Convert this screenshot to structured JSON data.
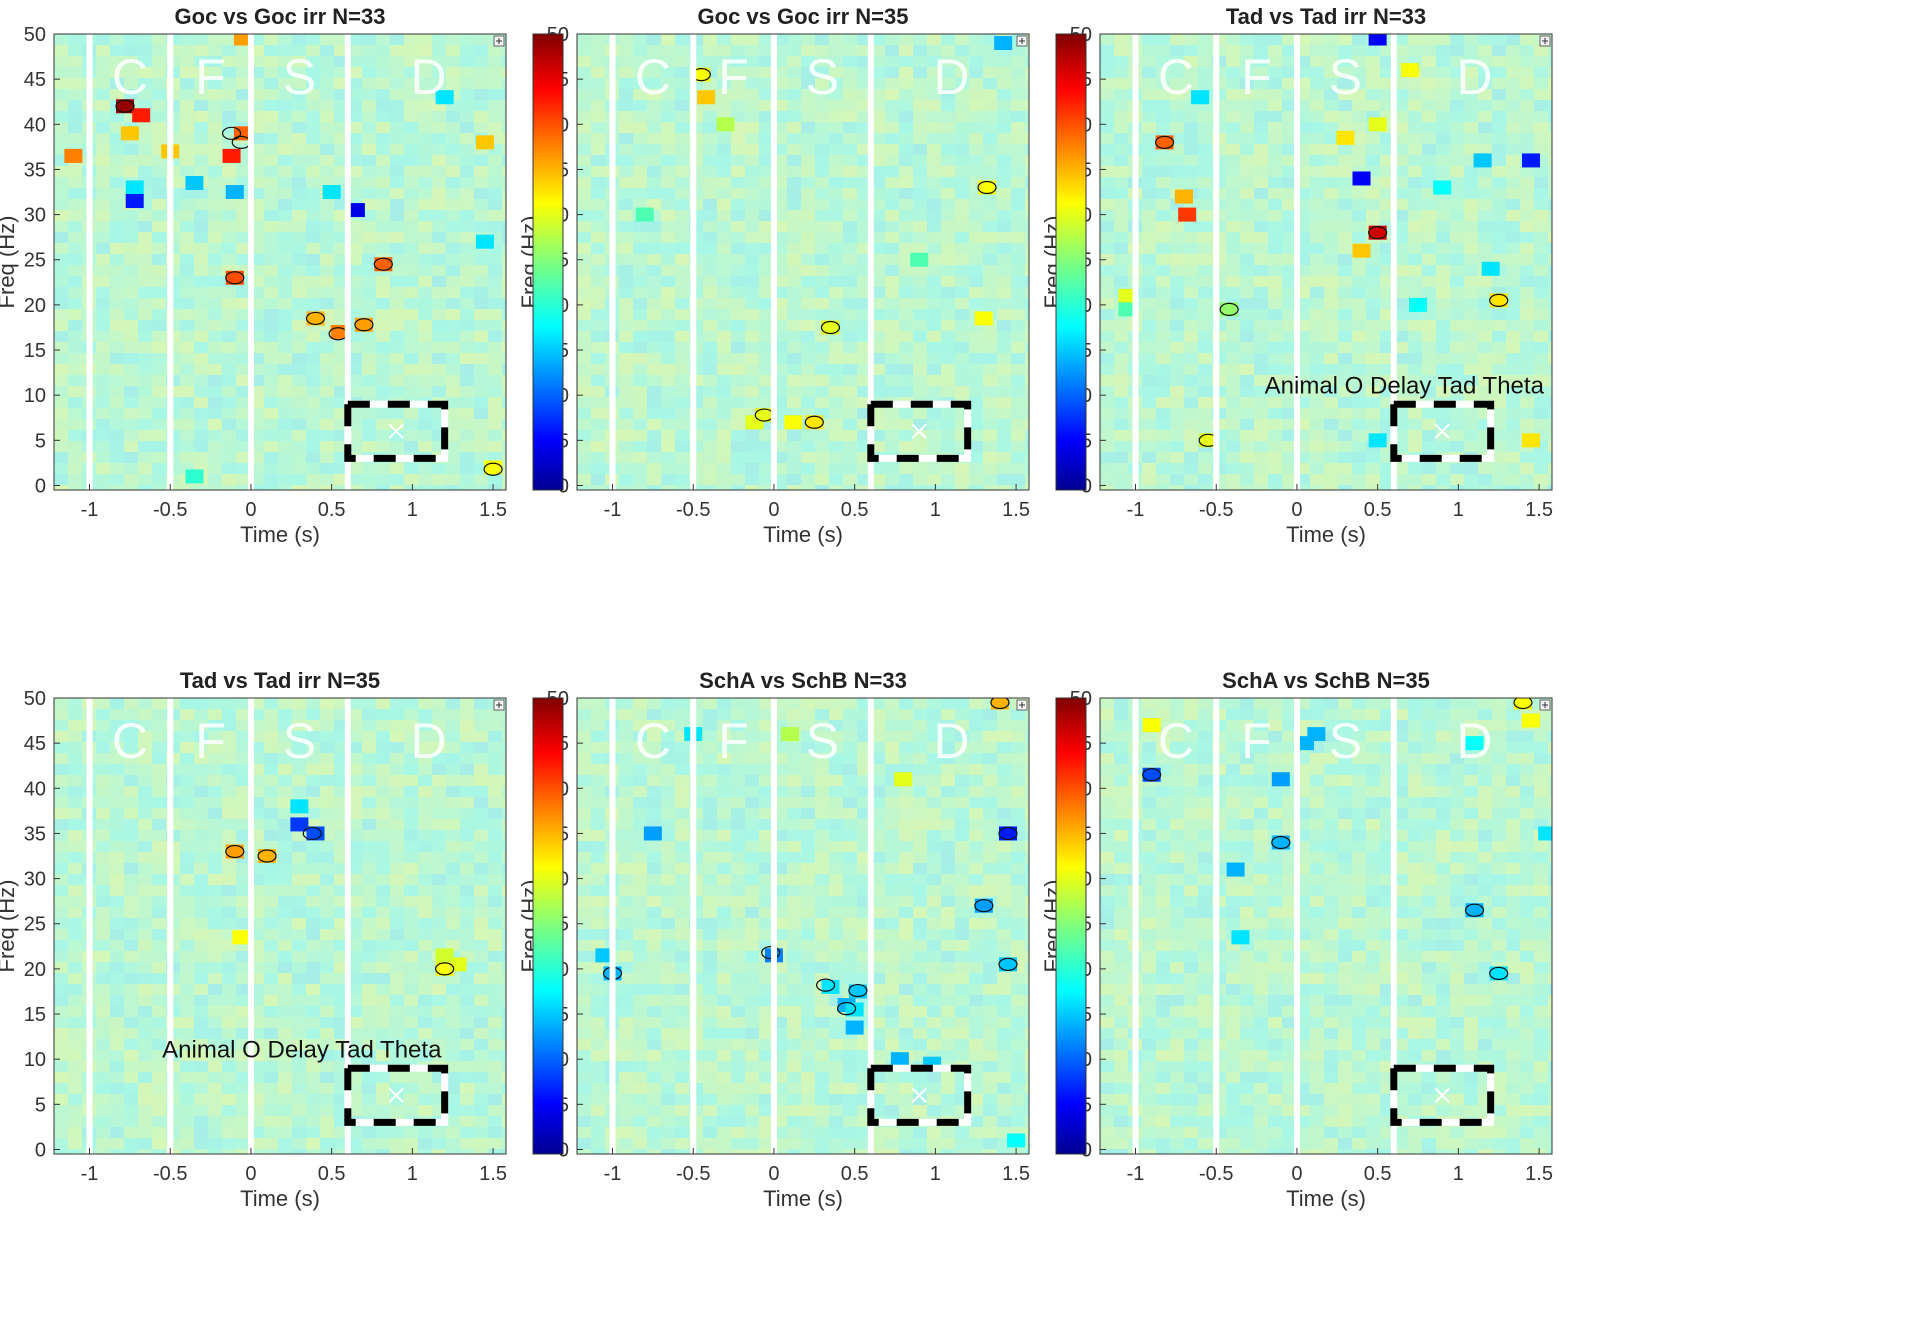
{
  "figure": {
    "colormap": "jet",
    "panel_background": "#c8edc8"
  },
  "chart_data": [
    {
      "type": "heatmap",
      "title": "Goc vs Goc irr N=33",
      "xlabel": "Time (s)",
      "ylabel": "Freq (Hz)",
      "xlim": [
        -1.22,
        1.58
      ],
      "ylim": [
        -0.5,
        50
      ],
      "xticks": [
        "-1",
        "-0.5",
        "0",
        "0.5",
        "1",
        "1.5"
      ],
      "yticks": [
        "0",
        "5",
        "10",
        "15",
        "20",
        "25",
        "30",
        "35",
        "40",
        "45",
        "50"
      ],
      "phase_dividers_s": [
        -1,
        -0.5,
        0,
        0.6
      ],
      "phase_labels": [
        {
          "text": "C",
          "time_s": -0.75
        },
        {
          "text": "F",
          "time_s": -0.25
        },
        {
          "text": "S",
          "time_s": 0.3
        },
        {
          "text": "D",
          "time_s": 1.1
        }
      ],
      "roi_box": {
        "t0": 0.6,
        "t1": 1.2,
        "f0": 3,
        "f1": 9,
        "marker": "x"
      },
      "annotation": "",
      "colorbar": false,
      "blobs": [
        {
          "time_s": -0.78,
          "freq_hz": 42,
          "level": 0.98
        },
        {
          "time_s": -0.68,
          "freq_hz": 41,
          "level": 0.85
        },
        {
          "time_s": -1.1,
          "freq_hz": 36.5,
          "level": 0.75
        },
        {
          "time_s": -0.75,
          "freq_hz": 39,
          "level": 0.68
        },
        {
          "time_s": -0.5,
          "freq_hz": 37,
          "level": 0.68
        },
        {
          "time_s": -0.72,
          "freq_hz": 33,
          "level": 0.35
        },
        {
          "time_s": -0.35,
          "freq_hz": 33.5,
          "level": 0.32
        },
        {
          "time_s": -0.1,
          "freq_hz": 32.5,
          "level": 0.3
        },
        {
          "time_s": -0.05,
          "freq_hz": 39,
          "level": 0.78
        },
        {
          "time_s": -0.12,
          "freq_hz": 36.5,
          "level": 0.85
        },
        {
          "time_s": -0.72,
          "freq_hz": 31.5,
          "level": 0.15
        },
        {
          "time_s": 0.5,
          "freq_hz": 32.5,
          "level": 0.35
        },
        {
          "time_s": 0.65,
          "freq_hz": 30.5,
          "level": 0.1
        },
        {
          "time_s": -0.1,
          "freq_hz": 23,
          "level": 0.8
        },
        {
          "time_s": 0.82,
          "freq_hz": 24.5,
          "level": 0.78
        },
        {
          "time_s": 0.4,
          "freq_hz": 18.5,
          "level": 0.7
        },
        {
          "time_s": 0.55,
          "freq_hz": 17,
          "level": 0.75
        },
        {
          "time_s": 0.7,
          "freq_hz": 17.8,
          "level": 0.72
        },
        {
          "time_s": 1.5,
          "freq_hz": 2,
          "level": 0.62
        },
        {
          "time_s": -0.35,
          "freq_hz": 1,
          "level": 0.42
        },
        {
          "time_s": 1.45,
          "freq_hz": 38,
          "level": 0.68
        },
        {
          "time_s": 1.2,
          "freq_hz": 43,
          "level": 0.35
        },
        {
          "time_s": -0.05,
          "freq_hz": 49.5,
          "level": 0.72
        },
        {
          "time_s": 1.45,
          "freq_hz": 27,
          "level": 0.35
        }
      ],
      "contours": [
        {
          "time_s": -0.78,
          "freq_hz": 42
        },
        {
          "time_s": -0.1,
          "freq_hz": 23
        },
        {
          "time_s": 0.4,
          "freq_hz": 18.5
        },
        {
          "time_s": 0.54,
          "freq_hz": 16.8
        },
        {
          "time_s": 0.7,
          "freq_hz": 17.8
        },
        {
          "time_s": 1.5,
          "freq_hz": 1.8
        },
        {
          "time_s": -0.12,
          "freq_hz": 39
        },
        {
          "time_s": -0.06,
          "freq_hz": 38
        },
        {
          "time_s": 0.82,
          "freq_hz": 24.5
        }
      ]
    },
    {
      "type": "heatmap",
      "title": "Goc vs Goc irr N=35",
      "xlabel": "Time (s)",
      "ylabel": "Freq (Hz)",
      "xlim": [
        -1.22,
        1.58
      ],
      "ylim": [
        -0.5,
        50
      ],
      "xticks": [
        "-1",
        "-0.5",
        "0",
        "0.5",
        "1",
        "1.5"
      ],
      "yticks": [
        "0",
        "5",
        "10",
        "15",
        "20",
        "25",
        "30",
        "35",
        "40",
        "45",
        "50"
      ],
      "phase_dividers_s": [
        -1,
        -0.5,
        0,
        0.6
      ],
      "phase_labels": [
        {
          "text": "C",
          "time_s": -0.75
        },
        {
          "text": "F",
          "time_s": -0.25
        },
        {
          "text": "S",
          "time_s": 0.3
        },
        {
          "text": "D",
          "time_s": 1.1
        }
      ],
      "roi_box": {
        "t0": 0.6,
        "t1": 1.2,
        "f0": 3,
        "f1": 9,
        "marker": "x"
      },
      "annotation": "",
      "colorbar": true,
      "blobs": [
        {
          "time_s": -0.45,
          "freq_hz": 45.5,
          "level": 0.62
        },
        {
          "time_s": -0.42,
          "freq_hz": 43,
          "level": 0.68
        },
        {
          "time_s": -0.3,
          "freq_hz": 40,
          "level": 0.55
        },
        {
          "time_s": 1.32,
          "freq_hz": 33,
          "level": 0.62
        },
        {
          "time_s": 0.35,
          "freq_hz": 17.5,
          "level": 0.6
        },
        {
          "time_s": 1.3,
          "freq_hz": 18.5,
          "level": 0.62
        },
        {
          "time_s": -0.12,
          "freq_hz": 7,
          "level": 0.6
        },
        {
          "time_s": -0.06,
          "freq_hz": 7.8,
          "level": 0.6
        },
        {
          "time_s": 0.12,
          "freq_hz": 7,
          "level": 0.62
        },
        {
          "time_s": 0.25,
          "freq_hz": 7,
          "level": 0.65
        },
        {
          "time_s": 1.42,
          "freq_hz": 49,
          "level": 0.3
        },
        {
          "time_s": -0.8,
          "freq_hz": 30,
          "level": 0.45
        },
        {
          "time_s": 0.9,
          "freq_hz": 25,
          "level": 0.45
        }
      ],
      "contours": [
        {
          "time_s": -0.45,
          "freq_hz": 45.5
        },
        {
          "time_s": 0.35,
          "freq_hz": 17.5
        },
        {
          "time_s": 0.25,
          "freq_hz": 7
        },
        {
          "time_s": 1.32,
          "freq_hz": 33
        },
        {
          "time_s": -0.06,
          "freq_hz": 7.8
        }
      ]
    },
    {
      "type": "heatmap",
      "title": "Tad vs Tad irr N=33",
      "xlabel": "Time (s)",
      "ylabel": "Freq (Hz)",
      "xlim": [
        -1.22,
        1.58
      ],
      "ylim": [
        -0.5,
        50
      ],
      "xticks": [
        "-1",
        "-0.5",
        "0",
        "0.5",
        "1",
        "1.5"
      ],
      "yticks": [
        "0",
        "5",
        "10",
        "15",
        "20",
        "25",
        "30",
        "35",
        "40",
        "45",
        "50"
      ],
      "phase_dividers_s": [
        -1,
        -0.5,
        0,
        0.6
      ],
      "phase_labels": [
        {
          "text": "C",
          "time_s": -0.75
        },
        {
          "text": "F",
          "time_s": -0.25
        },
        {
          "text": "S",
          "time_s": 0.3
        },
        {
          "text": "D",
          "time_s": 1.1
        }
      ],
      "roi_box": {
        "t0": 0.6,
        "t1": 1.2,
        "f0": 3,
        "f1": 9,
        "marker": "x"
      },
      "annotation": "Animal O Delay Tad Theta",
      "colorbar": true,
      "blobs": [
        {
          "time_s": 0.5,
          "freq_hz": 28,
          "level": 0.92
        },
        {
          "time_s": 0.4,
          "freq_hz": 26,
          "level": 0.68
        },
        {
          "time_s": 0.3,
          "freq_hz": 38.5,
          "level": 0.65
        },
        {
          "time_s": 0.5,
          "freq_hz": 40,
          "level": 0.6
        },
        {
          "time_s": -0.82,
          "freq_hz": 38,
          "level": 0.78
        },
        {
          "time_s": -0.7,
          "freq_hz": 32,
          "level": 0.7
        },
        {
          "time_s": -0.68,
          "freq_hz": 30,
          "level": 0.82
        },
        {
          "time_s": 0.4,
          "freq_hz": 34,
          "level": 0.12
        },
        {
          "time_s": 0.5,
          "freq_hz": 49.5,
          "level": 0.12
        },
        {
          "time_s": 1.45,
          "freq_hz": 36,
          "level": 0.15
        },
        {
          "time_s": 1.25,
          "freq_hz": 20.5,
          "level": 0.65
        },
        {
          "time_s": 1.15,
          "freq_hz": 36,
          "level": 0.32
        },
        {
          "time_s": 0.9,
          "freq_hz": 33,
          "level": 0.38
        },
        {
          "time_s": 1.2,
          "freq_hz": 24,
          "level": 0.35
        },
        {
          "time_s": 0.75,
          "freq_hz": 20,
          "level": 0.38
        },
        {
          "time_s": -0.42,
          "freq_hz": 19.5,
          "level": 0.52
        },
        {
          "time_s": -0.55,
          "freq_hz": 5,
          "level": 0.6
        },
        {
          "time_s": -1.05,
          "freq_hz": 21,
          "level": 0.6
        },
        {
          "time_s": -1.05,
          "freq_hz": 19.5,
          "level": 0.45
        },
        {
          "time_s": 0.5,
          "freq_hz": 5,
          "level": 0.35
        },
        {
          "time_s": 1.45,
          "freq_hz": 5,
          "level": 0.65
        },
        {
          "time_s": -0.6,
          "freq_hz": 43,
          "level": 0.35
        },
        {
          "time_s": 0.7,
          "freq_hz": 46,
          "level": 0.62
        }
      ],
      "contours": [
        {
          "time_s": 0.5,
          "freq_hz": 28
        },
        {
          "time_s": -0.82,
          "freq_hz": 38
        },
        {
          "time_s": 1.25,
          "freq_hz": 20.5
        },
        {
          "time_s": -0.42,
          "freq_hz": 19.5
        },
        {
          "time_s": -0.55,
          "freq_hz": 5
        }
      ]
    },
    {
      "type": "heatmap",
      "title": "Tad vs Tad irr N=35",
      "xlabel": "Time (s)",
      "ylabel": "Freq (Hz)",
      "xlim": [
        -1.22,
        1.58
      ],
      "ylim": [
        -0.5,
        50
      ],
      "xticks": [
        "-1",
        "-0.5",
        "0",
        "0.5",
        "1",
        "1.5"
      ],
      "yticks": [
        "0",
        "5",
        "10",
        "15",
        "20",
        "25",
        "30",
        "35",
        "40",
        "45",
        "50"
      ],
      "phase_dividers_s": [
        -1,
        -0.5,
        0,
        0.6
      ],
      "phase_labels": [
        {
          "text": "C",
          "time_s": -0.75
        },
        {
          "text": "F",
          "time_s": -0.25
        },
        {
          "text": "S",
          "time_s": 0.3
        },
        {
          "text": "D",
          "time_s": 1.1
        }
      ],
      "roi_box": {
        "t0": 0.6,
        "t1": 1.2,
        "f0": 3,
        "f1": 9,
        "marker": "x"
      },
      "annotation": "Animal O Delay Tad Theta",
      "colorbar": false,
      "blobs": [
        {
          "time_s": -0.1,
          "freq_hz": 33,
          "level": 0.72
        },
        {
          "time_s": 0.1,
          "freq_hz": 32.5,
          "level": 0.7
        },
        {
          "time_s": -0.06,
          "freq_hz": 23.5,
          "level": 0.62
        },
        {
          "time_s": 0.3,
          "freq_hz": 36,
          "level": 0.18
        },
        {
          "time_s": 0.4,
          "freq_hz": 35,
          "level": 0.2
        },
        {
          "time_s": 1.2,
          "freq_hz": 20,
          "level": 0.62
        },
        {
          "time_s": 1.28,
          "freq_hz": 20.5,
          "level": 0.6
        },
        {
          "time_s": 1.2,
          "freq_hz": 21.5,
          "level": 0.58
        },
        {
          "time_s": 0.3,
          "freq_hz": 38,
          "level": 0.35
        }
      ],
      "contours": [
        {
          "time_s": -0.1,
          "freq_hz": 33
        },
        {
          "time_s": 0.1,
          "freq_hz": 32.5
        },
        {
          "time_s": 0.38,
          "freq_hz": 35
        },
        {
          "time_s": 1.2,
          "freq_hz": 20
        }
      ]
    },
    {
      "type": "heatmap",
      "title": "SchA vs SchB N=33",
      "xlabel": "Time (s)",
      "ylabel": "Freq (Hz)",
      "xlim": [
        -1.22,
        1.58
      ],
      "ylim": [
        -0.5,
        50
      ],
      "xticks": [
        "-1",
        "-0.5",
        "0",
        "0.5",
        "1",
        "1.5"
      ],
      "yticks": [
        "0",
        "5",
        "10",
        "15",
        "20",
        "25",
        "30",
        "35",
        "40",
        "45",
        "50"
      ],
      "phase_dividers_s": [
        -1,
        -0.5,
        0,
        0.6
      ],
      "phase_labels": [
        {
          "text": "C",
          "time_s": -0.75
        },
        {
          "text": "F",
          "time_s": -0.25
        },
        {
          "text": "S",
          "time_s": 0.3
        },
        {
          "text": "D",
          "time_s": 1.1
        }
      ],
      "roi_box": {
        "t0": 0.6,
        "t1": 1.2,
        "f0": 3,
        "f1": 9,
        "marker": "x"
      },
      "annotation": "",
      "colorbar": true,
      "blobs": [
        {
          "time_s": 1.4,
          "freq_hz": 49.5,
          "level": 0.7
        },
        {
          "time_s": 0.8,
          "freq_hz": 41,
          "level": 0.6
        },
        {
          "time_s": 0.0,
          "freq_hz": 21.5,
          "level": 0.25
        },
        {
          "time_s": -1.0,
          "freq_hz": 19.5,
          "level": 0.3
        },
        {
          "time_s": 0.35,
          "freq_hz": 18,
          "level": 0.35
        },
        {
          "time_s": 0.45,
          "freq_hz": 16,
          "level": 0.3
        },
        {
          "time_s": 0.52,
          "freq_hz": 17.5,
          "level": 0.32
        },
        {
          "time_s": 0.5,
          "freq_hz": 15.5,
          "level": 0.35
        },
        {
          "time_s": 0.5,
          "freq_hz": 13.5,
          "level": 0.3
        },
        {
          "time_s": -0.75,
          "freq_hz": 35,
          "level": 0.28
        },
        {
          "time_s": 1.45,
          "freq_hz": 35,
          "level": 0.15
        },
        {
          "time_s": 1.3,
          "freq_hz": 27,
          "level": 0.28
        },
        {
          "time_s": 1.45,
          "freq_hz": 20.5,
          "level": 0.32
        },
        {
          "time_s": 1.5,
          "freq_hz": 1,
          "level": 0.38
        },
        {
          "time_s": 0.78,
          "freq_hz": 10,
          "level": 0.3
        },
        {
          "time_s": 0.98,
          "freq_hz": 9.5,
          "level": 0.32
        },
        {
          "time_s": -0.5,
          "freq_hz": 46,
          "level": 0.35
        },
        {
          "time_s": -1.05,
          "freq_hz": 21.5,
          "level": 0.32
        },
        {
          "time_s": 0.1,
          "freq_hz": 46,
          "level": 0.55
        }
      ],
      "contours": [
        {
          "time_s": 1.4,
          "freq_hz": 49.5
        },
        {
          "time_s": -0.02,
          "freq_hz": 21.8
        },
        {
          "time_s": -1.0,
          "freq_hz": 19.5
        },
        {
          "time_s": 0.32,
          "freq_hz": 18.2
        },
        {
          "time_s": 0.45,
          "freq_hz": 15.6
        },
        {
          "time_s": 0.52,
          "freq_hz": 17.6
        },
        {
          "time_s": 1.45,
          "freq_hz": 35
        },
        {
          "time_s": 1.3,
          "freq_hz": 27
        },
        {
          "time_s": 1.45,
          "freq_hz": 20.5
        }
      ]
    },
    {
      "type": "heatmap",
      "title": "SchA vs SchB N=35",
      "xlabel": "Time (s)",
      "ylabel": "Freq (Hz)",
      "xlim": [
        -1.22,
        1.58
      ],
      "ylim": [
        -0.5,
        50
      ],
      "xticks": [
        "-1",
        "-0.5",
        "0",
        "0.5",
        "1",
        "1.5"
      ],
      "yticks": [
        "0",
        "5",
        "10",
        "15",
        "20",
        "25",
        "30",
        "35",
        "40",
        "45",
        "50"
      ],
      "phase_dividers_s": [
        -1,
        -0.5,
        0,
        0.6
      ],
      "phase_labels": [
        {
          "text": "C",
          "time_s": -0.75
        },
        {
          "text": "F",
          "time_s": -0.25
        },
        {
          "text": "S",
          "time_s": 0.3
        },
        {
          "text": "D",
          "time_s": 1.1
        }
      ],
      "roi_box": {
        "t0": 0.6,
        "t1": 1.2,
        "f0": 3,
        "f1": 9,
        "marker": "x"
      },
      "annotation": "",
      "colorbar": true,
      "blobs": [
        {
          "time_s": -0.9,
          "freq_hz": 41.5,
          "level": 0.2
        },
        {
          "time_s": -0.9,
          "freq_hz": 47,
          "level": 0.62
        },
        {
          "time_s": 0.05,
          "freq_hz": 45,
          "level": 0.3
        },
        {
          "time_s": 0.12,
          "freq_hz": 46,
          "level": 0.3
        },
        {
          "time_s": -0.1,
          "freq_hz": 41,
          "level": 0.28
        },
        {
          "time_s": -0.1,
          "freq_hz": 34,
          "level": 0.3
        },
        {
          "time_s": -0.38,
          "freq_hz": 31,
          "level": 0.3
        },
        {
          "time_s": -0.35,
          "freq_hz": 23.5,
          "level": 0.35
        },
        {
          "time_s": 1.1,
          "freq_hz": 26.5,
          "level": 0.3
        },
        {
          "time_s": 1.25,
          "freq_hz": 19.5,
          "level": 0.35
        },
        {
          "time_s": 1.4,
          "freq_hz": 49.5,
          "level": 0.62
        },
        {
          "time_s": 1.45,
          "freq_hz": 47.5,
          "level": 0.62
        },
        {
          "time_s": 1.55,
          "freq_hz": 35,
          "level": 0.35
        },
        {
          "time_s": 1.1,
          "freq_hz": 45,
          "level": 0.38
        }
      ],
      "contours": [
        {
          "time_s": -0.9,
          "freq_hz": 41.5
        },
        {
          "time_s": -0.1,
          "freq_hz": 34
        },
        {
          "time_s": 1.1,
          "freq_hz": 26.5
        },
        {
          "time_s": 1.25,
          "freq_hz": 19.5
        },
        {
          "time_s": 1.4,
          "freq_hz": 49.5
        }
      ]
    }
  ]
}
